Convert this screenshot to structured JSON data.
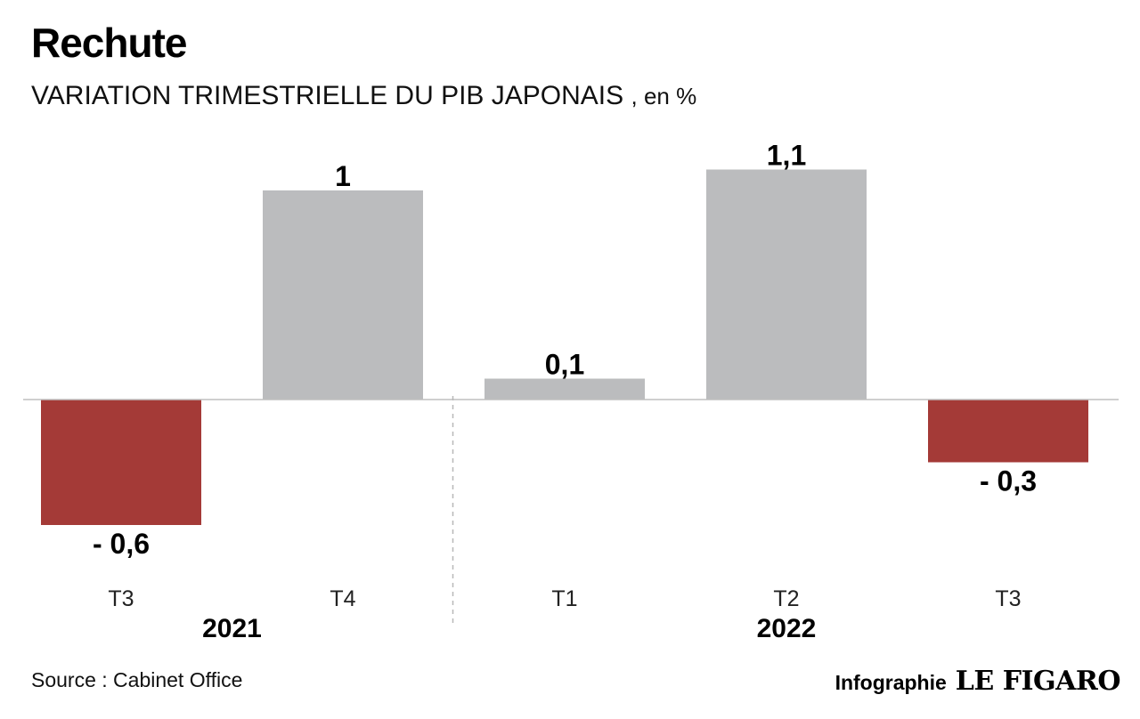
{
  "header": {
    "title": "Rechute",
    "subtitle": "VARIATION TRIMESTRIELLE DU PIB JAPONAIS",
    "unit": ", en %"
  },
  "footer": {
    "source": "Source : Cabinet Office",
    "credit_label": "Infographie",
    "credit_logo": "LE FIGARO"
  },
  "colors": {
    "positive": "#bbbcbe",
    "negative": "#a43a37",
    "baseline": "#bfbfbf",
    "separator": "#b8b8b8"
  },
  "chart_data": {
    "type": "bar",
    "categories": [
      "T3",
      "T4",
      "T1",
      "T2",
      "T3"
    ],
    "values": [
      -0.6,
      1,
      0.1,
      1.1,
      -0.3
    ],
    "value_labels": [
      "- 0,6",
      "1",
      "0,1",
      "1,1",
      "- 0,3"
    ],
    "groups": [
      {
        "label": "2021",
        "categories": [
          0,
          1
        ]
      },
      {
        "label": "2022",
        "categories": [
          2,
          3,
          4
        ]
      }
    ],
    "ylim": [
      -0.6,
      1.1
    ],
    "grid": false,
    "legend": "none"
  }
}
